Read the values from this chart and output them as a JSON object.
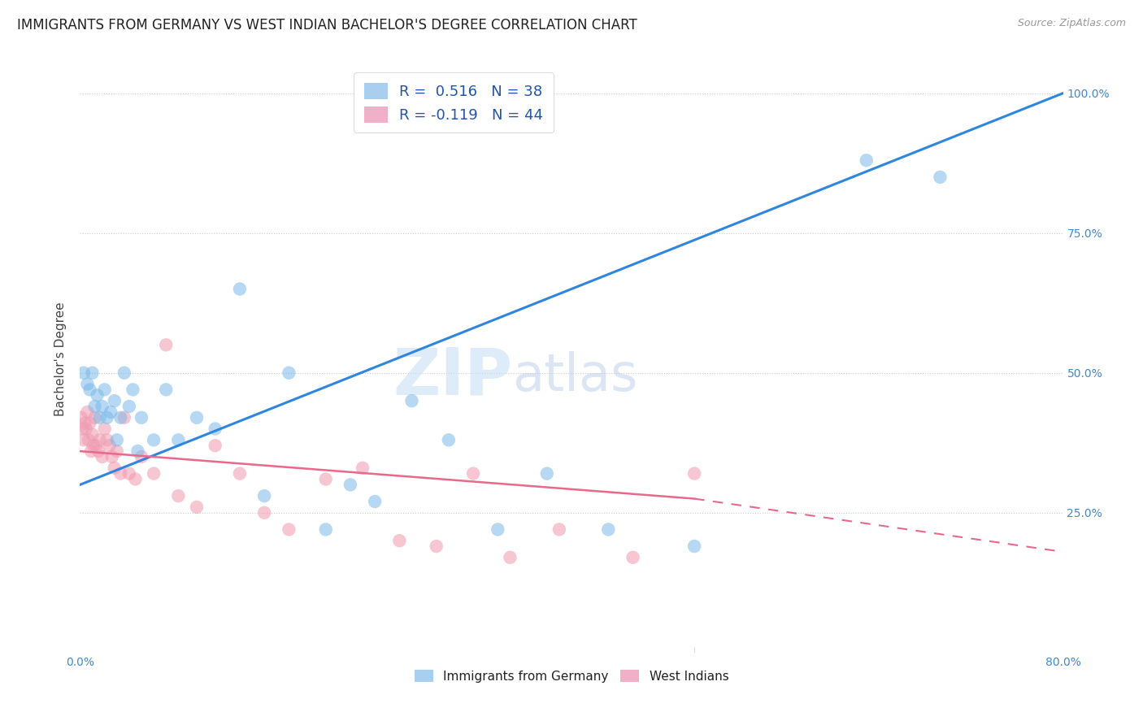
{
  "title": "IMMIGRANTS FROM GERMANY VS WEST INDIAN BACHELOR'S DEGREE CORRELATION CHART",
  "source": "Source: ZipAtlas.com",
  "ylabel": "Bachelor's Degree",
  "xlim": [
    0.0,
    0.8
  ],
  "ylim": [
    0.0,
    1.05
  ],
  "xticks": [
    0.0,
    0.2,
    0.4,
    0.6,
    0.8
  ],
  "xticklabels": [
    "0.0%",
    "",
    "",
    "",
    "80.0%"
  ],
  "yticks_right": [
    0.0,
    0.25,
    0.5,
    0.75,
    1.0
  ],
  "yticklabels_right": [
    "",
    "25.0%",
    "50.0%",
    "75.0%",
    "100.0%"
  ],
  "legend_bottom": [
    "Immigrants from Germany",
    "West Indians"
  ],
  "germany_color": "#7ab8e8",
  "westindian_color": "#f09ab0",
  "germany_line_color": "#2e86de",
  "westindian_line_color": "#e8698a",
  "germany_line": {
    "x0": 0.0,
    "y0": 0.3,
    "x1": 0.8,
    "y1": 1.0
  },
  "westindian_line_solid": {
    "x0": 0.0,
    "y0": 0.36,
    "x1": 0.5,
    "y1": 0.275
  },
  "westindian_line_dashed": {
    "x0": 0.5,
    "y0": 0.275,
    "x1": 0.8,
    "y1": 0.18
  },
  "germany_scatter_x": [
    0.003,
    0.006,
    0.008,
    0.01,
    0.012,
    0.014,
    0.016,
    0.018,
    0.02,
    0.022,
    0.025,
    0.028,
    0.03,
    0.033,
    0.036,
    0.04,
    0.043,
    0.047,
    0.05,
    0.06,
    0.07,
    0.08,
    0.095,
    0.11,
    0.13,
    0.15,
    0.17,
    0.2,
    0.22,
    0.24,
    0.27,
    0.3,
    0.34,
    0.38,
    0.43,
    0.5,
    0.64,
    0.7
  ],
  "germany_scatter_y": [
    0.5,
    0.48,
    0.47,
    0.5,
    0.44,
    0.46,
    0.42,
    0.44,
    0.47,
    0.42,
    0.43,
    0.45,
    0.38,
    0.42,
    0.5,
    0.44,
    0.47,
    0.36,
    0.42,
    0.38,
    0.47,
    0.38,
    0.42,
    0.4,
    0.65,
    0.28,
    0.5,
    0.22,
    0.3,
    0.27,
    0.45,
    0.38,
    0.22,
    0.32,
    0.22,
    0.19,
    0.88,
    0.85
  ],
  "westindian_scatter_x": [
    0.001,
    0.002,
    0.003,
    0.004,
    0.005,
    0.006,
    0.007,
    0.008,
    0.009,
    0.01,
    0.011,
    0.012,
    0.013,
    0.015,
    0.016,
    0.018,
    0.02,
    0.022,
    0.024,
    0.026,
    0.028,
    0.03,
    0.033,
    0.036,
    0.04,
    0.045,
    0.05,
    0.06,
    0.07,
    0.08,
    0.095,
    0.11,
    0.13,
    0.15,
    0.17,
    0.2,
    0.23,
    0.26,
    0.29,
    0.32,
    0.35,
    0.39,
    0.45,
    0.5
  ],
  "westindian_scatter_y": [
    0.42,
    0.4,
    0.38,
    0.41,
    0.4,
    0.43,
    0.38,
    0.41,
    0.36,
    0.39,
    0.37,
    0.42,
    0.37,
    0.36,
    0.38,
    0.35,
    0.4,
    0.38,
    0.37,
    0.35,
    0.33,
    0.36,
    0.32,
    0.42,
    0.32,
    0.31,
    0.35,
    0.32,
    0.55,
    0.28,
    0.26,
    0.37,
    0.32,
    0.25,
    0.22,
    0.31,
    0.33,
    0.2,
    0.19,
    0.32,
    0.17,
    0.22,
    0.17,
    0.32
  ],
  "watermark_zip": "ZIP",
  "watermark_atlas": "atlas",
  "background_color": "#ffffff",
  "grid_color": "#cccccc",
  "title_fontsize": 12,
  "axis_fontsize": 11,
  "tick_fontsize": 10,
  "legend_patch_blue": "#a8cef0",
  "legend_patch_pink": "#f0b0c8"
}
